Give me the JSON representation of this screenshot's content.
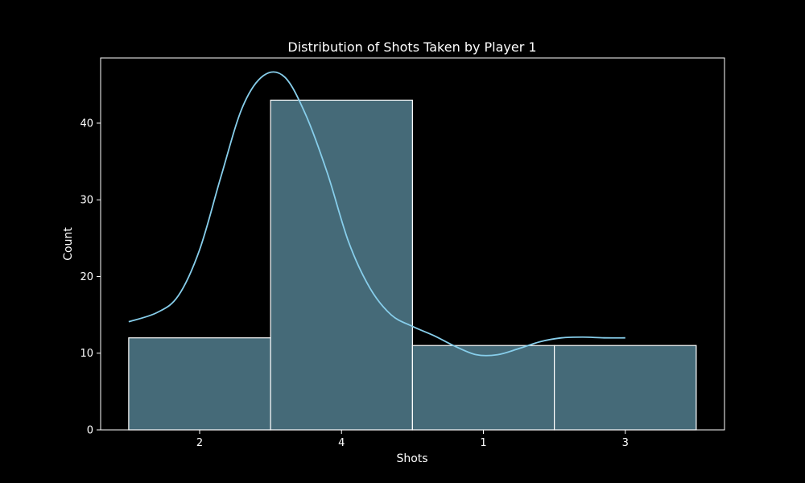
{
  "chart_data": {
    "type": "bar",
    "title": "Distribution of Shots Taken by Player 1",
    "xlabel": "Shots",
    "ylabel": "Count",
    "categories": [
      "2",
      "4",
      "1",
      "3"
    ],
    "values": [
      12,
      43,
      11,
      11
    ],
    "ylim": [
      0,
      48.5
    ],
    "yticks": [
      0,
      10,
      20,
      30,
      40
    ],
    "kde": {
      "x": [
        -0.5,
        -0.3,
        -0.15,
        0.0,
        0.15,
        0.3,
        0.45,
        0.6,
        0.75,
        0.9,
        1.05,
        1.2,
        1.35,
        1.5,
        1.65,
        1.8,
        1.95,
        2.1,
        2.25,
        2.4,
        2.55,
        2.7,
        2.85,
        3.0
      ],
      "y": [
        14.1,
        15.3,
        17.5,
        23.5,
        33.0,
        42.0,
        46.2,
        46.0,
        41.0,
        33.5,
        24.5,
        18.5,
        15.0,
        13.5,
        12.3,
        10.9,
        9.8,
        9.8,
        10.6,
        11.5,
        12.0,
        12.1,
        12.0,
        12.0
      ]
    },
    "grid": false,
    "legend": "none",
    "colors": {
      "background": "#000000",
      "bar_fill": "#456a78",
      "bar_edge": "#ffffff",
      "kde_line": "#87ceeb",
      "axes": "#ffffff",
      "text": "#ffffff"
    }
  }
}
